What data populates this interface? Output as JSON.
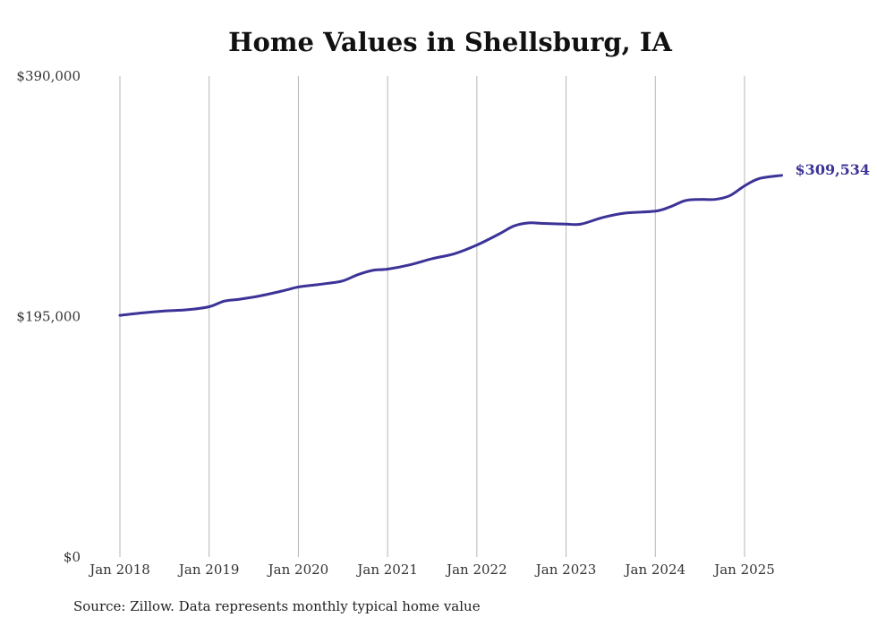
{
  "chart_data": {
    "type": "line",
    "title": "Home Values in Shellsburg, IA",
    "xlabel": "",
    "ylabel": "",
    "ylim": [
      0,
      390000
    ],
    "xlim": [
      "2018-01",
      "2025-06"
    ],
    "grid": "vertical",
    "y_ticks": [
      {
        "value": 0,
        "label": "$0"
      },
      {
        "value": 195000,
        "label": "$195,000"
      },
      {
        "value": 390000,
        "label": "$390,000"
      }
    ],
    "x_ticks": [
      {
        "value": "2018-01",
        "label": "Jan 2018"
      },
      {
        "value": "2019-01",
        "label": "Jan 2019"
      },
      {
        "value": "2020-01",
        "label": "Jan 2020"
      },
      {
        "value": "2021-01",
        "label": "Jan 2021"
      },
      {
        "value": "2022-01",
        "label": "Jan 2022"
      },
      {
        "value": "2023-01",
        "label": "Jan 2023"
      },
      {
        "value": "2024-01",
        "label": "Jan 2024"
      },
      {
        "value": "2025-01",
        "label": "Jan 2025"
      }
    ],
    "series": [
      {
        "color": "#3b3397",
        "end_label": "$309,534",
        "points": [
          {
            "x": "2018-01",
            "y": 196000
          },
          {
            "x": "2018-04",
            "y": 198000
          },
          {
            "x": "2018-07",
            "y": 199500
          },
          {
            "x": "2018-10",
            "y": 200500
          },
          {
            "x": "2019-01",
            "y": 203000
          },
          {
            "x": "2019-03",
            "y": 207500
          },
          {
            "x": "2019-05",
            "y": 209000
          },
          {
            "x": "2019-08",
            "y": 212000
          },
          {
            "x": "2019-11",
            "y": 216000
          },
          {
            "x": "2020-01",
            "y": 219000
          },
          {
            "x": "2020-03",
            "y": 220500
          },
          {
            "x": "2020-05",
            "y": 222000
          },
          {
            "x": "2020-07",
            "y": 224000
          },
          {
            "x": "2020-09",
            "y": 229000
          },
          {
            "x": "2020-11",
            "y": 232500
          },
          {
            "x": "2021-01",
            "y": 233500
          },
          {
            "x": "2021-04",
            "y": 237000
          },
          {
            "x": "2021-07",
            "y": 242000
          },
          {
            "x": "2021-10",
            "y": 246000
          },
          {
            "x": "2022-01",
            "y": 253000
          },
          {
            "x": "2022-04",
            "y": 262000
          },
          {
            "x": "2022-06",
            "y": 268500
          },
          {
            "x": "2022-08",
            "y": 271000
          },
          {
            "x": "2022-10",
            "y": 270500
          },
          {
            "x": "2023-01",
            "y": 270000
          },
          {
            "x": "2023-03",
            "y": 270000
          },
          {
            "x": "2023-06",
            "y": 275500
          },
          {
            "x": "2023-09",
            "y": 279000
          },
          {
            "x": "2024-01",
            "y": 280500
          },
          {
            "x": "2024-03",
            "y": 284000
          },
          {
            "x": "2024-05",
            "y": 289000
          },
          {
            "x": "2024-07",
            "y": 290000
          },
          {
            "x": "2024-09",
            "y": 290000
          },
          {
            "x": "2024-11",
            "y": 293000
          },
          {
            "x": "2025-01",
            "y": 301000
          },
          {
            "x": "2025-03",
            "y": 307000
          },
          {
            "x": "2025-06",
            "y": 309534
          }
        ]
      }
    ]
  },
  "source_note": "Source: Zillow. Data represents monthly typical home value"
}
